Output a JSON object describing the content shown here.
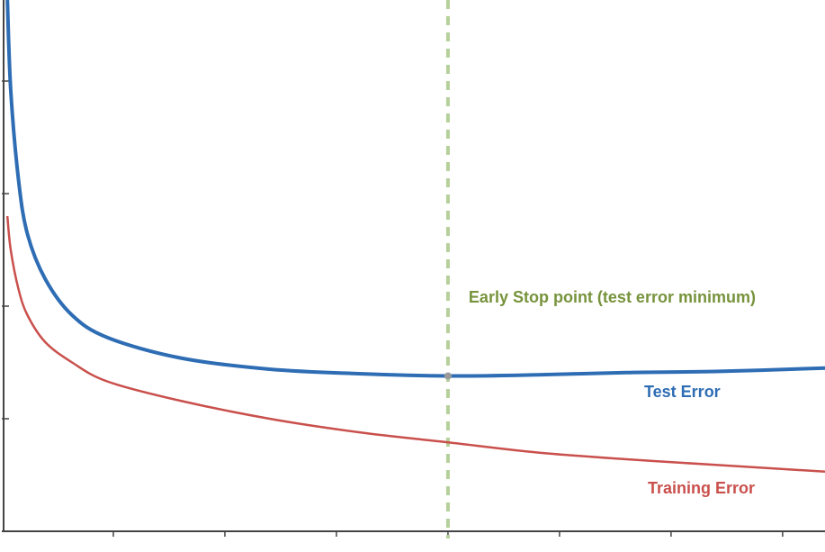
{
  "chart_data": {
    "type": "line",
    "x": [
      0.05,
      0.08,
      0.15,
      0.23,
      0.39,
      0.63,
      0.95,
      1.6,
      2.4,
      3.2,
      4.0,
      4.8,
      5.6,
      6.4,
      7.38
    ],
    "series": [
      {
        "name": "Test Error",
        "color": "#2e6db4",
        "values": [
          4.72,
          3.92,
          3.12,
          2.64,
          2.24,
          1.92,
          1.72,
          1.54,
          1.44,
          1.4,
          1.38,
          1.39,
          1.41,
          1.42,
          1.45
        ]
      },
      {
        "name": "Training Error",
        "color": "#c9504c",
        "values": [
          2.8,
          2.5,
          2.15,
          1.92,
          1.68,
          1.5,
          1.33,
          1.16,
          1.0,
          0.88,
          0.79,
          0.7,
          0.64,
          0.59,
          0.53
        ]
      }
    ],
    "xlim": [
      0,
      7.38
    ],
    "ylim": [
      0,
      4.72
    ],
    "xticks": [
      1,
      2,
      3,
      4,
      5,
      6,
      7
    ],
    "yticks": [
      1,
      2,
      3,
      4
    ],
    "early_stop": {
      "x": 4.0,
      "y": 1.38,
      "label": "Early Stop point (test error minimum)",
      "color": "#77933c",
      "line_color": "#b5d09a"
    }
  }
}
